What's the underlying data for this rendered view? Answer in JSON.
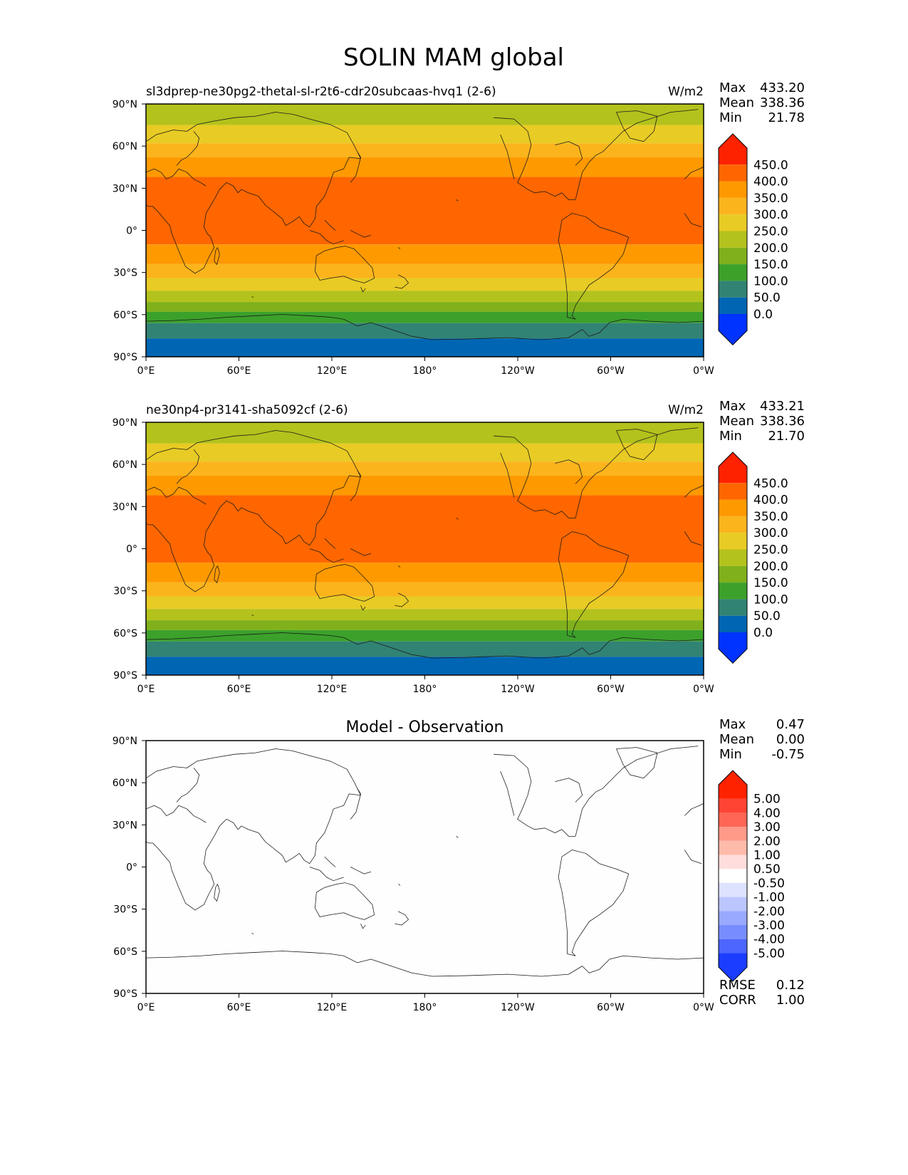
{
  "title": "SOLIN MAM global",
  "lat_ticks": [
    "90°N",
    "60°N",
    "30°N",
    "0°",
    "30°S",
    "60°S",
    "90°S"
  ],
  "lon_ticks": [
    "0°E",
    "60°E",
    "120°E",
    "180°",
    "120°W",
    "60°W",
    "0°W"
  ],
  "panels": [
    {
      "title": "sl3dprep-ne30pg2-thetal-sl-r2t6-cdr20subcaas-hvq1 (2-6)",
      "units": "W/m2",
      "stats": {
        "max_label": "Max",
        "max": "433.20",
        "mean_label": "Mean",
        "mean": "338.36",
        "min_label": "Min",
        "min": "21.78"
      },
      "colorbar": {
        "labels": [
          "450.0",
          "400.0",
          "350.0",
          "300.0",
          "250.0",
          "200.0",
          "150.0",
          "100.0",
          "50.0",
          "0.0"
        ],
        "colors": [
          "#ff2200",
          "#ff6600",
          "#ff9900",
          "#fbb41c",
          "#e8cb24",
          "#b3c21c",
          "#80b01b",
          "#3ca12b",
          "#318373",
          "#0066b3",
          "#0033ff"
        ]
      }
    },
    {
      "title": "ne30np4-pr3141-sha5092cf (2-6)",
      "units": "W/m2",
      "stats": {
        "max_label": "Max",
        "max": "433.21",
        "mean_label": "Mean",
        "mean": "338.36",
        "min_label": "Min",
        "min": "21.70"
      },
      "colorbar": {
        "labels": [
          "450.0",
          "400.0",
          "350.0",
          "300.0",
          "250.0",
          "200.0",
          "150.0",
          "100.0",
          "50.0",
          "0.0"
        ],
        "colors": [
          "#ff2200",
          "#ff6600",
          "#ff9900",
          "#fbb41c",
          "#e8cb24",
          "#b3c21c",
          "#80b01b",
          "#3ca12b",
          "#318373",
          "#0066b3",
          "#0033ff"
        ]
      }
    },
    {
      "title": "Model - Observation",
      "units": "",
      "stats": {
        "max_label": "Max",
        "max": "0.47",
        "mean_label": "Mean",
        "mean": "0.00",
        "min_label": "Min",
        "min": "-0.75"
      },
      "colorbar": {
        "labels": [
          "5.00",
          "4.00",
          "3.00",
          "2.00",
          "1.00",
          "0.50",
          "-0.50",
          "-1.00",
          "-2.00",
          "-3.00",
          "-4.00",
          "-5.00"
        ],
        "colors": [
          "#ff2200",
          "#ff4433",
          "#ff6655",
          "#ff9988",
          "#ffbbaa",
          "#ffdddd",
          "#ffffff",
          "#dde2ff",
          "#bbc6ff",
          "#99a9ff",
          "#778dff",
          "#4d66ff",
          "#1a3dff"
        ]
      },
      "metrics": {
        "rmse_label": "RMSE",
        "rmse": "0.12",
        "corr_label": "CORR",
        "corr": "1.00"
      }
    }
  ],
  "solin_bands": [
    {
      "lat_range": [
        75,
        90
      ],
      "value": "200-250",
      "color": "#b3c21c"
    },
    {
      "lat_range": [
        62,
        75
      ],
      "value": "250-300",
      "color": "#e8cb24"
    },
    {
      "lat_range": [
        52,
        62
      ],
      "value": "300-350",
      "color": "#fbb41c"
    },
    {
      "lat_range": [
        38,
        52
      ],
      "value": "350-400",
      "color": "#ff9900"
    },
    {
      "lat_range": [
        -10,
        38
      ],
      "value": "400-450",
      "color": "#ff6600"
    },
    {
      "lat_range": [
        -24,
        -10
      ],
      "value": "350-400",
      "color": "#ff9900"
    },
    {
      "lat_range": [
        -34,
        -24
      ],
      "value": "300-350",
      "color": "#fbb41c"
    },
    {
      "lat_range": [
        -43,
        -34
      ],
      "value": "250-300",
      "color": "#e8cb24"
    },
    {
      "lat_range": [
        -51,
        -43
      ],
      "value": "200-250",
      "color": "#b3c21c"
    },
    {
      "lat_range": [
        -58,
        -51
      ],
      "value": "150-200",
      "color": "#80b01b"
    },
    {
      "lat_range": [
        -66,
        -58
      ],
      "value": "100-150",
      "color": "#3ca12b"
    },
    {
      "lat_range": [
        -77,
        -66
      ],
      "value": "50-100",
      "color": "#318373"
    },
    {
      "lat_range": [
        -90,
        -77
      ],
      "value": "0-50",
      "color": "#0066b3"
    }
  ],
  "diff_fill_color": "#fefefe"
}
